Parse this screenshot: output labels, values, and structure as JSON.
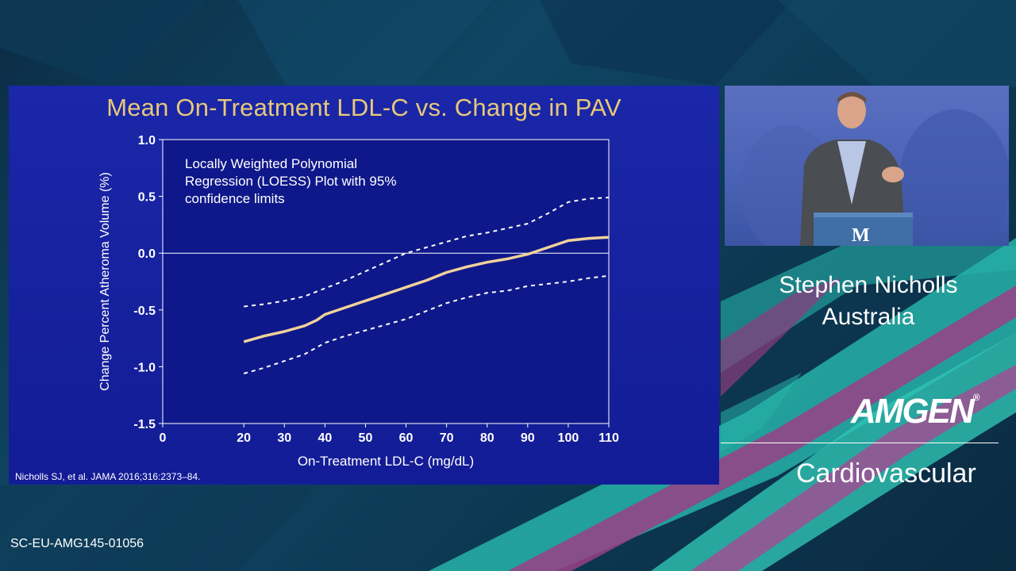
{
  "slide": {
    "title": "Mean On-Treatment LDL-C vs. Change in PAV",
    "annotation_lines": [
      "Locally Weighted Polynomial",
      "Regression (LOESS) Plot with 95%",
      "confidence limits"
    ],
    "citation": "Nicholls SJ, et al. JAMA 2016;316:2373–84."
  },
  "chart_data": {
    "type": "line",
    "xlabel": "On-Treatment LDL-C (mg/dL)",
    "ylabel": "Change Percent Atheroma Volume (%)",
    "xlim": [
      0,
      110
    ],
    "ylim": [
      -1.5,
      1.0
    ],
    "xticks": [
      0,
      20,
      30,
      40,
      50,
      60,
      70,
      80,
      90,
      100,
      110
    ],
    "yticks": [
      1.0,
      0.5,
      0.0,
      -0.5,
      -1.0,
      -1.5
    ],
    "ytick_labels": [
      "1.0",
      "0.5",
      "0.0",
      "-0.5",
      "-1.0",
      "-1.5"
    ],
    "reference_line_y": 0.0,
    "colors": {
      "background": "#131c96",
      "loess": "#f0d29a",
      "ci": "#ffffff",
      "axis": "#ffffff"
    },
    "series": [
      {
        "style": "solid",
        "x": [
          20,
          25,
          30,
          35,
          38,
          40,
          45,
          50,
          55,
          60,
          65,
          70,
          75,
          80,
          85,
          90,
          95,
          100,
          105,
          110
        ],
        "y": [
          -0.78,
          -0.73,
          -0.69,
          -0.64,
          -0.59,
          -0.54,
          -0.48,
          -0.42,
          -0.36,
          -0.3,
          -0.24,
          -0.17,
          -0.12,
          -0.08,
          -0.05,
          -0.01,
          0.05,
          0.11,
          0.13,
          0.14
        ]
      },
      {
        "style": "dashed",
        "x": [
          20,
          25,
          30,
          35,
          40,
          45,
          50,
          55,
          60,
          65,
          70,
          75,
          80,
          85,
          90,
          95,
          100,
          105,
          110
        ],
        "y": [
          -0.47,
          -0.45,
          -0.42,
          -0.38,
          -0.31,
          -0.24,
          -0.16,
          -0.08,
          0.0,
          0.05,
          0.1,
          0.15,
          0.18,
          0.22,
          0.26,
          0.35,
          0.45,
          0.48,
          0.49
        ]
      },
      {
        "style": "dashed",
        "x": [
          20,
          25,
          30,
          35,
          40,
          45,
          50,
          55,
          60,
          65,
          70,
          75,
          80,
          85,
          90,
          95,
          100,
          105,
          110
        ],
        "y": [
          -1.06,
          -1.01,
          -0.95,
          -0.89,
          -0.79,
          -0.73,
          -0.68,
          -0.63,
          -0.58,
          -0.51,
          -0.44,
          -0.39,
          -0.35,
          -0.33,
          -0.29,
          -0.27,
          -0.25,
          -0.22,
          -0.2
        ]
      }
    ]
  },
  "video": {
    "podium_mark": "M"
  },
  "speaker": {
    "name": "Stephen Nicholls",
    "country": "Australia"
  },
  "brand": {
    "logo": "AMGEN",
    "registered": "®",
    "subtitle": "Cardiovascular"
  },
  "footer": {
    "code": "SC-EU-AMG145-01056"
  }
}
